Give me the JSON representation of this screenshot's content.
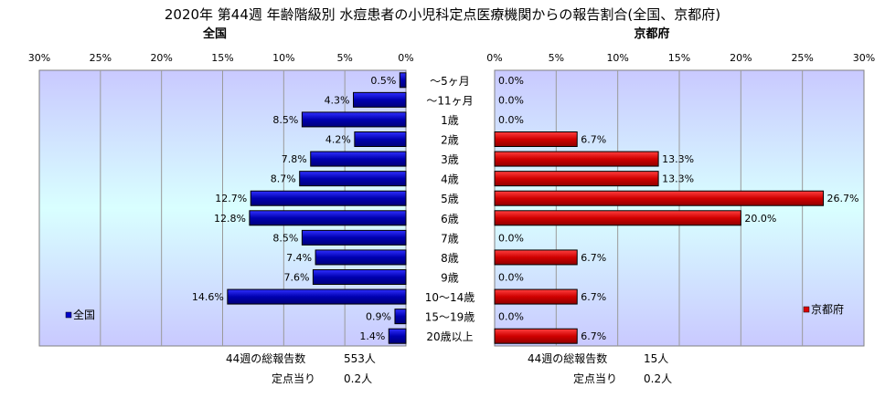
{
  "title": "2020年 第44週 年齢階級別 水痘患者の小児科定点医療機関からの報告割合(全国、京都府)",
  "chart_data": [
    {
      "type": "bar",
      "orientation": "horizontal",
      "direction": "right-to-left",
      "title": "全国",
      "categories": [
        "～5ヶ月",
        "～11ヶ月",
        "1歳",
        "2歳",
        "3歳",
        "4歳",
        "5歳",
        "6歳",
        "7歳",
        "8歳",
        "9歳",
        "10～14歳",
        "15～19歳",
        "20歳以上"
      ],
      "series": [
        {
          "name": "全国",
          "color": "#0000cc",
          "values": [
            0.5,
            4.3,
            8.5,
            4.2,
            7.8,
            8.7,
            12.7,
            12.8,
            8.5,
            7.4,
            7.6,
            14.6,
            0.9,
            1.4
          ],
          "labels": [
            "0.5%",
            "4.3%",
            "8.5%",
            "4.2%",
            "7.8%",
            "8.7%",
            "12.7%",
            "12.8%",
            "8.5%",
            "7.4%",
            "7.6%",
            "14.6%",
            "0.9%",
            "1.4%"
          ]
        }
      ],
      "xlim": [
        0,
        30
      ],
      "ticks": [
        "0%",
        "5%",
        "10%",
        "15%",
        "20%",
        "25%",
        "30%"
      ],
      "legend": "left",
      "footer": [
        {
          "label": "44週の総報告数",
          "value": "553人"
        },
        {
          "label": "定点当り",
          "value": "0.2人"
        }
      ]
    },
    {
      "type": "bar",
      "orientation": "horizontal",
      "direction": "left-to-right",
      "title": "京都府",
      "categories": [
        "～5ヶ月",
        "～11ヶ月",
        "1歳",
        "2歳",
        "3歳",
        "4歳",
        "5歳",
        "6歳",
        "7歳",
        "8歳",
        "9歳",
        "10～14歳",
        "15～19歳",
        "20歳以上"
      ],
      "series": [
        {
          "name": "京都府",
          "color": "#dd0000",
          "values": [
            0.0,
            0.0,
            0.0,
            6.7,
            13.3,
            13.3,
            26.7,
            20.0,
            0.0,
            6.7,
            0.0,
            6.7,
            0.0,
            6.7
          ],
          "labels": [
            "0.0%",
            "0.0%",
            "0.0%",
            "6.7%",
            "13.3%",
            "13.3%",
            "26.7%",
            "20.0%",
            "0.0%",
            "6.7%",
            "0.0%",
            "6.7%",
            "0.0%",
            "6.7%"
          ]
        }
      ],
      "xlim": [
        0,
        30
      ],
      "ticks": [
        "0%",
        "5%",
        "10%",
        "15%",
        "20%",
        "25%",
        "30%"
      ],
      "legend": "right",
      "footer": [
        {
          "label": "44週の総報告数",
          "value": "15人"
        },
        {
          "label": "定点当り",
          "value": "0.2人"
        }
      ]
    }
  ],
  "category_labels": [
    "～5ヶ月",
    "～11ヶ月",
    "1歳",
    "2歳",
    "3歳",
    "4歳",
    "5歳",
    "6歳",
    "7歳",
    "8歳",
    "9歳",
    "10～14歳",
    "15～19歳",
    "20歳以上"
  ]
}
